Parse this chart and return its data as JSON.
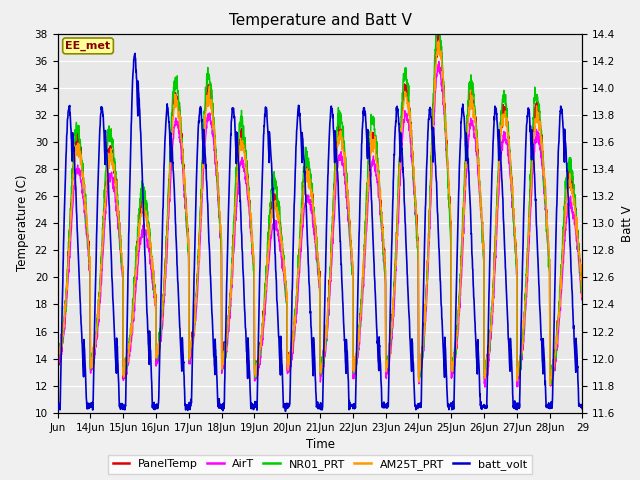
{
  "title": "Temperature and Batt V",
  "xlabel": "Time",
  "ylabel_left": "Temperature (C)",
  "ylabel_right": "Batt V",
  "ylim_left": [
    10,
    38
  ],
  "ylim_right": [
    11.6,
    14.4
  ],
  "background_color": "#f0f0f0",
  "plot_bg_color": "#e8e8e8",
  "annotation_text": "EE_met",
  "annotation_color": "#880000",
  "annotation_bg": "#ffff99",
  "annotation_border": "#888800",
  "series_colors": {
    "PanelTemp": "#dd0000",
    "AirT": "#ff00ff",
    "NR01_PRT": "#00cc00",
    "AM25T_PRT": "#ff9900",
    "batt_volt": "#0000cc"
  },
  "series_lw": {
    "PanelTemp": 1.0,
    "AirT": 1.0,
    "NR01_PRT": 1.0,
    "AM25T_PRT": 1.0,
    "batt_volt": 1.2
  },
  "xtick_labels": [
    "Jun",
    "14Jun",
    "15Jun",
    "16Jun",
    "17Jun",
    "18Jun",
    "19Jun",
    "20Jun",
    "21Jun",
    "22Jun",
    "23Jun",
    "24Jun",
    "25Jun",
    "26Jun",
    "27Jun",
    "28Jun",
    "29"
  ],
  "yticks_left": [
    10,
    12,
    14,
    16,
    18,
    20,
    22,
    24,
    26,
    28,
    30,
    32,
    34,
    36,
    38
  ],
  "yticks_right": [
    11.6,
    11.8,
    12.0,
    12.2,
    12.4,
    12.6,
    12.8,
    13.0,
    13.2,
    13.4,
    13.6,
    13.8,
    14.0,
    14.2,
    14.4
  ],
  "n_days": 16,
  "pts_per_day": 144
}
